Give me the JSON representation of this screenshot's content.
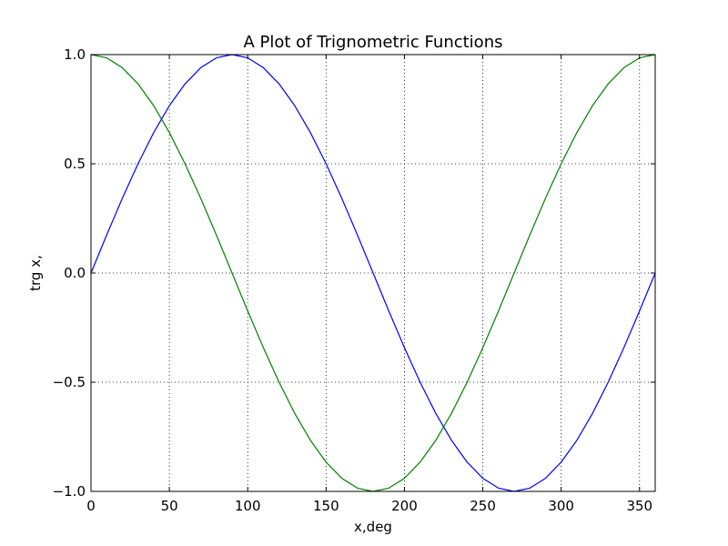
{
  "chart_data": {
    "type": "line",
    "title": "A Plot of Trignometric Functions",
    "xlabel": "x,deg",
    "ylabel": "trg x,",
    "xlim": [
      0,
      360
    ],
    "ylim": [
      -1.0,
      1.0
    ],
    "grid": true,
    "x_ticks": [
      0,
      50,
      100,
      150,
      200,
      250,
      300,
      350
    ],
    "x_tick_labels": [
      "0",
      "50",
      "100",
      "150",
      "200",
      "250",
      "300",
      "350"
    ],
    "y_ticks": [
      -1.0,
      -0.5,
      0.0,
      0.5,
      1.0
    ],
    "y_tick_labels": [
      "−1.0",
      "−0.5",
      "0.0",
      "0.5",
      "1.0"
    ],
    "x": [
      0,
      10,
      20,
      30,
      40,
      50,
      60,
      70,
      80,
      90,
      100,
      110,
      120,
      130,
      140,
      150,
      160,
      170,
      180,
      190,
      200,
      210,
      220,
      230,
      240,
      250,
      260,
      270,
      280,
      290,
      300,
      310,
      320,
      330,
      340,
      350,
      360
    ],
    "series": [
      {
        "color": "#0000ff",
        "values": [
          0.0,
          0.174,
          0.342,
          0.5,
          0.643,
          0.766,
          0.866,
          0.94,
          0.985,
          1.0,
          0.985,
          0.94,
          0.866,
          0.766,
          0.643,
          0.5,
          0.342,
          0.174,
          0.0,
          -0.174,
          -0.342,
          -0.5,
          -0.643,
          -0.766,
          -0.866,
          -0.94,
          -0.985,
          -1.0,
          -0.985,
          -0.94,
          -0.866,
          -0.766,
          -0.643,
          -0.5,
          -0.342,
          -0.174,
          0.0
        ]
      },
      {
        "color": "#008000",
        "values": [
          1.0,
          0.985,
          0.94,
          0.866,
          0.766,
          0.643,
          0.5,
          0.342,
          0.174,
          0.0,
          -0.174,
          -0.342,
          -0.5,
          -0.643,
          -0.766,
          -0.866,
          -0.94,
          -0.985,
          -1.0,
          -0.985,
          -0.94,
          -0.866,
          -0.766,
          -0.643,
          -0.5,
          -0.342,
          -0.174,
          0.0,
          0.174,
          0.342,
          0.5,
          0.643,
          0.766,
          0.866,
          0.94,
          0.985,
          1.0
        ]
      }
    ]
  }
}
